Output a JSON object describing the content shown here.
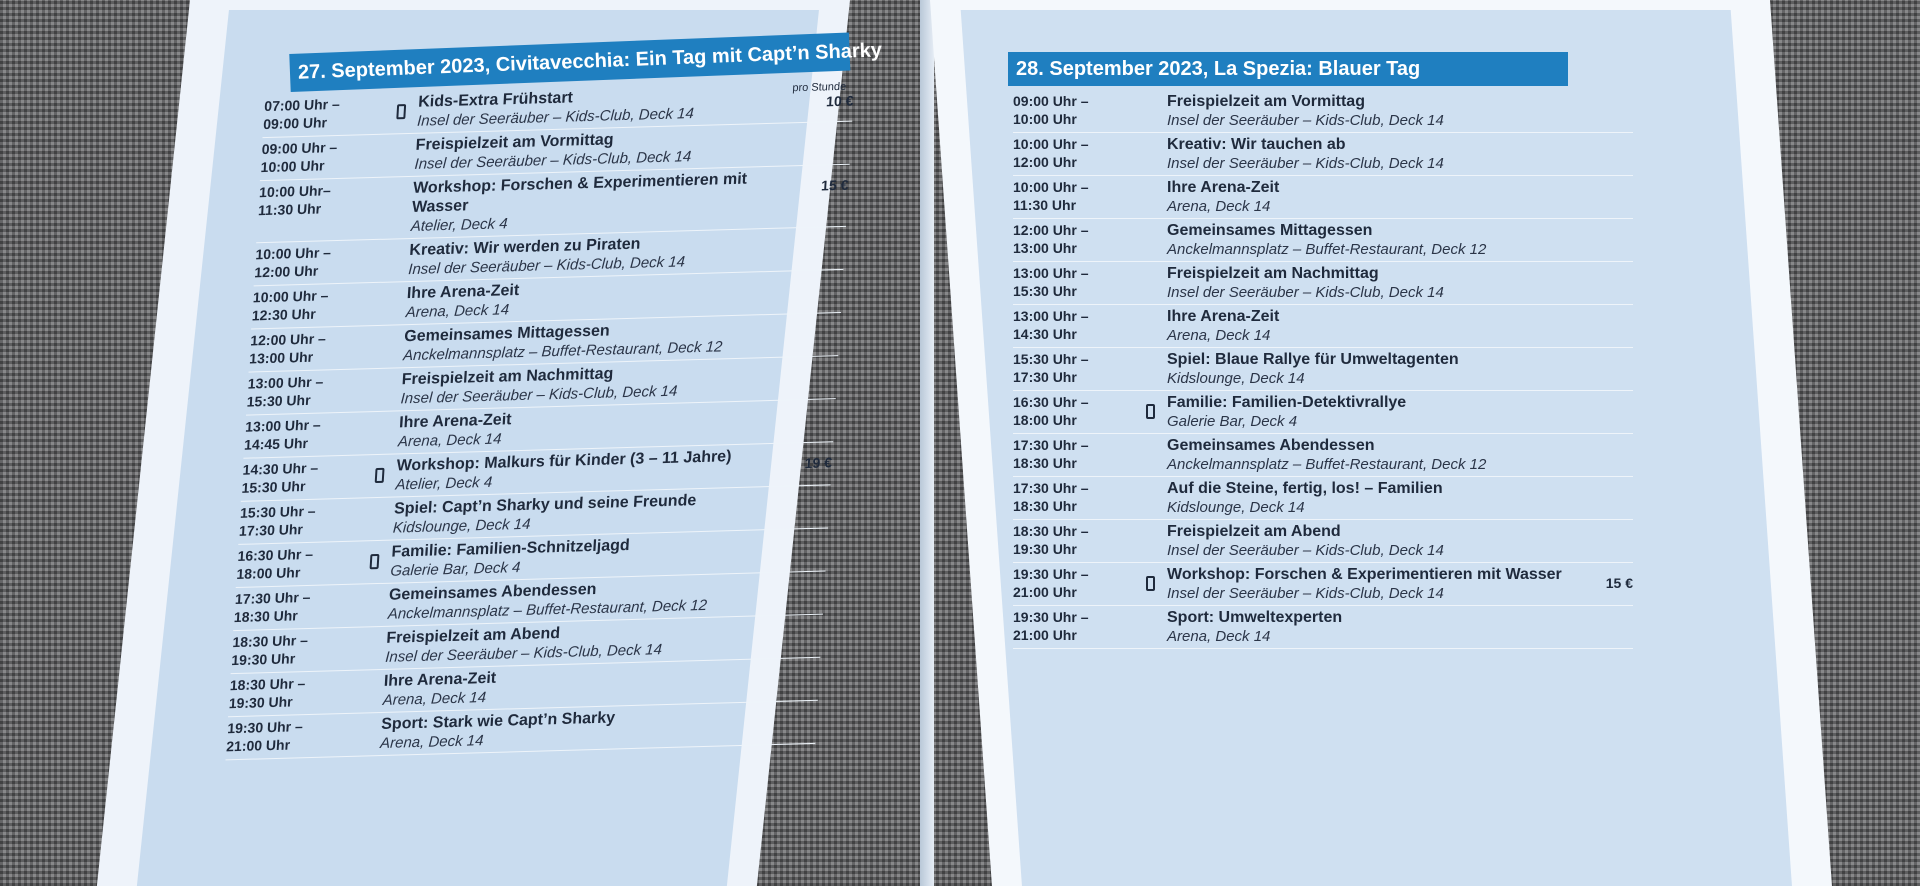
{
  "left": {
    "header": "27. September 2023, Civitavecchia: Ein Tag mit Capt’n Sharky",
    "rows": [
      {
        "time": "07:00 Uhr –\n09:00 Uhr",
        "phone": true,
        "title": "Kids-Extra Frühstart",
        "loc": "Insel der Seeräuber – Kids-Club, Deck 14",
        "price_note": "pro Stunde",
        "price": "10 €"
      },
      {
        "time": "09:00 Uhr –\n10:00 Uhr",
        "title": "Freispielzeit am Vormittag",
        "loc": "Insel der Seeräuber – Kids-Club, Deck 14"
      },
      {
        "time": "10:00 Uhr–\n11:30 Uhr",
        "title": "Workshop: Forschen & Experimentieren mit Wasser",
        "loc": "Atelier, Deck 4",
        "price": "15 €"
      },
      {
        "time": "10:00 Uhr –\n12:00 Uhr",
        "title": "Kreativ: Wir werden zu Piraten",
        "loc": "Insel der Seeräuber – Kids-Club, Deck 14"
      },
      {
        "time": "10:00 Uhr –\n12:30 Uhr",
        "title": "Ihre Arena-Zeit",
        "loc": "Arena, Deck 14"
      },
      {
        "time": "12:00 Uhr –\n13:00 Uhr",
        "title": "Gemeinsames Mittagessen",
        "loc": "Anckelmannsplatz – Buffet-Restaurant, Deck 12"
      },
      {
        "time": "13:00 Uhr –\n15:30 Uhr",
        "title": "Freispielzeit am Nachmittag",
        "loc": "Insel der Seeräuber – Kids-Club, Deck 14"
      },
      {
        "time": "13:00 Uhr –\n14:45 Uhr",
        "title": "Ihre Arena-Zeit",
        "loc": "Arena, Deck 14"
      },
      {
        "time": "14:30 Uhr –\n15:30 Uhr",
        "phone": true,
        "title": "Workshop: Malkurs für Kinder (3 – 11 Jahre)",
        "loc": "Atelier, Deck 4",
        "price": "19 €"
      },
      {
        "time": "15:30 Uhr –\n17:30 Uhr",
        "title": "Spiel: Capt’n Sharky und seine Freunde",
        "loc": "Kidslounge, Deck 14"
      },
      {
        "time": "16:30 Uhr –\n18:00 Uhr",
        "phone": true,
        "title": "Familie: Familien-Schnitzeljagd",
        "loc": "Galerie Bar, Deck 4"
      },
      {
        "time": "17:30 Uhr –\n18:30 Uhr",
        "title": "Gemeinsames Abendessen",
        "loc": "Anckelmannsplatz – Buffet-Restaurant, Deck 12"
      },
      {
        "time": "18:30 Uhr –\n19:30 Uhr",
        "title": "Freispielzeit am Abend",
        "loc": "Insel der Seeräuber – Kids-Club, Deck 14"
      },
      {
        "time": "18:30 Uhr –\n19:30 Uhr",
        "title": "Ihre Arena-Zeit",
        "loc": "Arena, Deck 14"
      },
      {
        "time": "19:30 Uhr –\n21:00 Uhr",
        "title": "Sport: Stark wie Capt’n Sharky",
        "loc": "Arena, Deck 14"
      }
    ]
  },
  "right": {
    "header": "28. September 2023, La Spezia: Blauer Tag",
    "rows": [
      {
        "time": "09:00 Uhr –\n10:00 Uhr",
        "title": "Freispielzeit am Vormittag",
        "loc": "Insel der Seeräuber – Kids-Club, Deck 14"
      },
      {
        "time": "10:00 Uhr –\n12:00 Uhr",
        "title": "Kreativ: Wir tauchen ab",
        "loc": "Insel der Seeräuber – Kids-Club, Deck 14"
      },
      {
        "time": "10:00 Uhr –\n11:30 Uhr",
        "title": "Ihre Arena-Zeit",
        "loc": "Arena, Deck 14"
      },
      {
        "time": "12:00 Uhr –\n13:00 Uhr",
        "title": "Gemeinsames Mittagessen",
        "loc": "Anckelmannsplatz – Buffet-Restaurant, Deck 12"
      },
      {
        "time": "13:00 Uhr –\n15:30 Uhr",
        "title": "Freispielzeit am Nachmittag",
        "loc": "Insel der Seeräuber – Kids-Club, Deck 14"
      },
      {
        "time": "13:00 Uhr –\n14:30 Uhr",
        "title": "Ihre Arena-Zeit",
        "loc": "Arena, Deck 14"
      },
      {
        "time": "15:30 Uhr –\n17:30 Uhr",
        "title": "Spiel: Blaue Rallye für Umweltagenten",
        "loc": "Kidslounge, Deck 14"
      },
      {
        "time": "16:30 Uhr –\n18:00 Uhr",
        "phone": true,
        "title": "Familie: Familien-Detektivrallye",
        "loc": "Galerie Bar, Deck 4"
      },
      {
        "time": "17:30 Uhr –\n18:30 Uhr",
        "title": "Gemeinsames Abendessen",
        "loc": "Anckelmannsplatz – Buffet-Restaurant, Deck 12"
      },
      {
        "time": "17:30 Uhr –\n18:30 Uhr",
        "title": "Auf die Steine, fertig, los! – Familien",
        "loc": "Kidslounge, Deck 14"
      },
      {
        "time": "18:30 Uhr –\n19:30 Uhr",
        "title": "Freispielzeit am Abend",
        "loc": "Insel der Seeräuber – Kids-Club, Deck 14"
      },
      {
        "time": "19:30 Uhr –\n21:00 Uhr",
        "phone": true,
        "title": "Workshop: Forschen & Experimentieren mit Wasser",
        "loc": "Insel der Seeräuber – Kids-Club, Deck 14",
        "price": "15 €"
      },
      {
        "time": "19:30 Uhr –\n21:00 Uhr",
        "title": "Sport: Umweltexperten",
        "loc": "Arena, Deck 14"
      }
    ]
  },
  "colors": {
    "header": "#1f7fc0",
    "panel": "#c9dcef"
  }
}
